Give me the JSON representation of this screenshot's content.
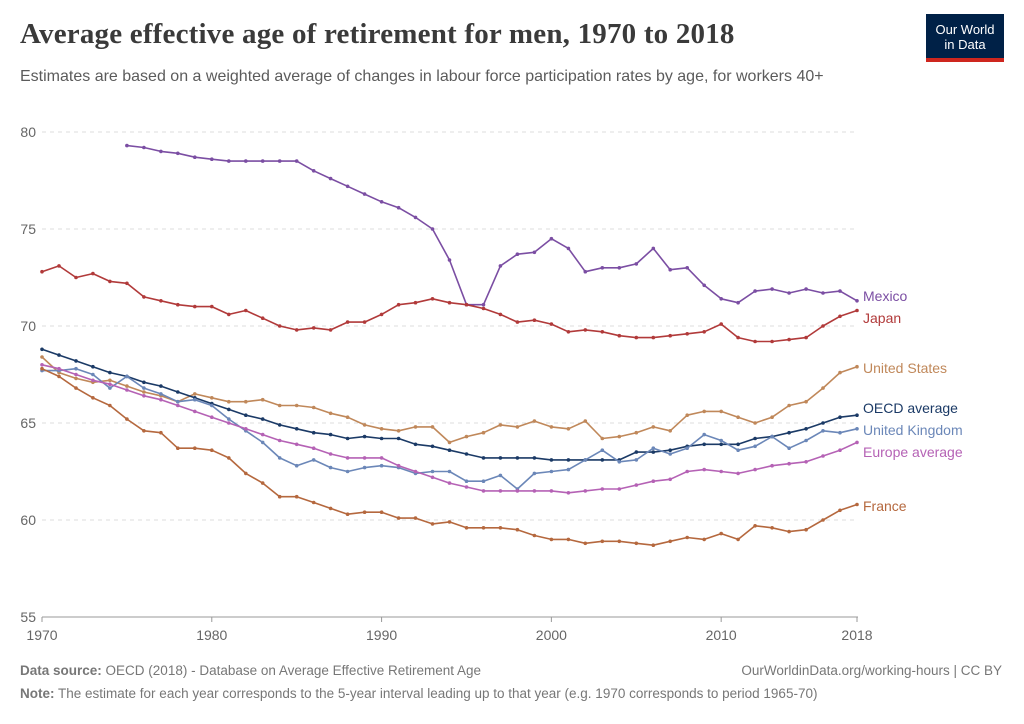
{
  "header": {
    "title": "Average effective age of retirement for men, 1970 to 2018",
    "subtitle": "Estimates are based on a weighted average of changes in labour force participation rates by age, for workers 40+",
    "logo_line1": "Our World",
    "logo_line2": "in Data"
  },
  "footer": {
    "source_label": "Data source:",
    "source_text": "OECD (2018) - Database on Average Effective Retirement Age",
    "url": "OurWorldinData.org/working-hours | CC BY",
    "note_label": "Note:",
    "note_text": "The estimate for each year corresponds to the 5-year interval leading up to that year (e.g. 1970 corresponds to period 1965-70)"
  },
  "chart_data": {
    "type": "line",
    "title": "Average effective age of retirement for men, 1970 to 2018",
    "xlim": [
      1970,
      2018
    ],
    "ylim": [
      55,
      80
    ],
    "x_ticks": [
      "1970",
      "1980",
      "1990",
      "2000",
      "2010",
      "2018"
    ],
    "y_ticks": [
      "55",
      "60",
      "65",
      "70",
      "75",
      "80"
    ],
    "grid": "horizontal dashed",
    "legend": "labels at line ends (right)",
    "series": [
      {
        "name": "Mexico",
        "color": "#7b4ea3",
        "x": [
          1975,
          1976,
          1977,
          1978,
          1979,
          1980,
          1981,
          1982,
          1983,
          1984,
          1985,
          1986,
          1987,
          1988,
          1989,
          1990,
          1991,
          1992,
          1993,
          1994,
          1995,
          1996,
          1997,
          1998,
          1999,
          2000,
          2001,
          2002,
          2003,
          2004,
          2005,
          2006,
          2007,
          2008,
          2009,
          2010,
          2011,
          2012,
          2013,
          2014,
          2015,
          2016,
          2017,
          2018
        ],
        "y": [
          79.3,
          79.2,
          79.0,
          78.9,
          78.7,
          78.6,
          78.5,
          78.5,
          78.5,
          78.5,
          78.5,
          78.0,
          77.6,
          77.2,
          76.8,
          76.4,
          76.1,
          75.6,
          75.0,
          73.4,
          71.1,
          71.1,
          73.1,
          73.7,
          73.8,
          74.5,
          74.0,
          72.8,
          73.0,
          73.0,
          73.2,
          74.0,
          72.9,
          73.0,
          72.1,
          71.4,
          71.2,
          71.8,
          71.9,
          71.7,
          71.9,
          71.7,
          71.8,
          71.3
        ]
      },
      {
        "name": "Japan",
        "color": "#b13a3a",
        "x": [
          1970,
          1971,
          1972,
          1973,
          1974,
          1975,
          1976,
          1977,
          1978,
          1979,
          1980,
          1981,
          1982,
          1983,
          1984,
          1985,
          1986,
          1987,
          1988,
          1989,
          1990,
          1991,
          1992,
          1993,
          1994,
          1995,
          1996,
          1997,
          1998,
          1999,
          2000,
          2001,
          2002,
          2003,
          2004,
          2005,
          2006,
          2007,
          2008,
          2009,
          2010,
          2011,
          2012,
          2013,
          2014,
          2015,
          2016,
          2017,
          2018
        ],
        "y": [
          72.8,
          73.1,
          72.5,
          72.7,
          72.3,
          72.2,
          71.5,
          71.3,
          71.1,
          71.0,
          71.0,
          70.6,
          70.8,
          70.4,
          70.0,
          69.8,
          69.9,
          69.8,
          70.2,
          70.2,
          70.6,
          71.1,
          71.2,
          71.4,
          71.2,
          71.1,
          70.9,
          70.6,
          70.2,
          70.3,
          70.1,
          69.7,
          69.8,
          69.7,
          69.5,
          69.4,
          69.4,
          69.5,
          69.6,
          69.7,
          70.1,
          69.4,
          69.2,
          69.2,
          69.3,
          69.4,
          70.0,
          70.5,
          70.8
        ]
      },
      {
        "name": "United States",
        "color": "#c0885a",
        "x": [
          1970,
          1971,
          1972,
          1973,
          1974,
          1975,
          1976,
          1977,
          1978,
          1979,
          1980,
          1981,
          1982,
          1983,
          1984,
          1985,
          1986,
          1987,
          1988,
          1989,
          1990,
          1991,
          1992,
          1993,
          1994,
          1995,
          1996,
          1997,
          1998,
          1999,
          2000,
          2001,
          2002,
          2003,
          2004,
          2005,
          2006,
          2007,
          2008,
          2009,
          2010,
          2011,
          2012,
          2013,
          2014,
          2015,
          2016,
          2017,
          2018
        ],
        "y": [
          68.4,
          67.6,
          67.3,
          67.1,
          67.2,
          66.9,
          66.6,
          66.4,
          66.1,
          66.5,
          66.3,
          66.1,
          66.1,
          66.2,
          65.9,
          65.9,
          65.8,
          65.5,
          65.3,
          64.9,
          64.7,
          64.6,
          64.8,
          64.8,
          64.0,
          64.3,
          64.5,
          64.9,
          64.8,
          65.1,
          64.8,
          64.7,
          65.1,
          64.2,
          64.3,
          64.5,
          64.8,
          64.6,
          65.4,
          65.6,
          65.6,
          65.3,
          65.0,
          65.3,
          65.9,
          66.1,
          66.8,
          67.6,
          67.9
        ]
      },
      {
        "name": "OECD average",
        "color": "#1b3a66",
        "x": [
          1970,
          1971,
          1972,
          1973,
          1974,
          1975,
          1976,
          1977,
          1978,
          1979,
          1980,
          1981,
          1982,
          1983,
          1984,
          1985,
          1986,
          1987,
          1988,
          1989,
          1990,
          1991,
          1992,
          1993,
          1994,
          1995,
          1996,
          1997,
          1998,
          1999,
          2000,
          2001,
          2002,
          2003,
          2004,
          2005,
          2006,
          2007,
          2008,
          2009,
          2010,
          2011,
          2012,
          2013,
          2014,
          2015,
          2016,
          2017,
          2018
        ],
        "y": [
          68.8,
          68.5,
          68.2,
          67.9,
          67.6,
          67.4,
          67.1,
          66.9,
          66.6,
          66.3,
          66.0,
          65.7,
          65.4,
          65.2,
          64.9,
          64.7,
          64.5,
          64.4,
          64.2,
          64.3,
          64.2,
          64.2,
          63.9,
          63.8,
          63.6,
          63.4,
          63.2,
          63.2,
          63.2,
          63.2,
          63.1,
          63.1,
          63.1,
          63.1,
          63.1,
          63.5,
          63.5,
          63.6,
          63.8,
          63.9,
          63.9,
          63.9,
          64.2,
          64.3,
          64.5,
          64.7,
          65.0,
          65.3,
          65.4
        ]
      },
      {
        "name": "United Kingdom",
        "color": "#6b87b8",
        "x": [
          1970,
          1971,
          1972,
          1973,
          1974,
          1975,
          1976,
          1977,
          1978,
          1979,
          1980,
          1981,
          1982,
          1983,
          1984,
          1985,
          1986,
          1987,
          1988,
          1989,
          1990,
          1991,
          1992,
          1993,
          1994,
          1995,
          1996,
          1997,
          1998,
          1999,
          2000,
          2001,
          2002,
          2003,
          2004,
          2005,
          2006,
          2007,
          2008,
          2009,
          2010,
          2011,
          2012,
          2013,
          2014,
          2015,
          2016,
          2017,
          2018
        ],
        "y": [
          67.7,
          67.7,
          67.8,
          67.5,
          66.8,
          67.4,
          66.8,
          66.5,
          66.1,
          66.2,
          65.9,
          65.2,
          64.6,
          64.0,
          63.2,
          62.8,
          63.1,
          62.7,
          62.5,
          62.7,
          62.8,
          62.7,
          62.4,
          62.5,
          62.5,
          62.0,
          62.0,
          62.3,
          61.6,
          62.4,
          62.5,
          62.6,
          63.1,
          63.6,
          63.0,
          63.1,
          63.7,
          63.4,
          63.7,
          64.4,
          64.1,
          63.6,
          63.8,
          64.3,
          63.7,
          64.1,
          64.6,
          64.5,
          64.7
        ]
      },
      {
        "name": "Europe average",
        "color": "#b562b5",
        "x": [
          1970,
          1971,
          1972,
          1973,
          1974,
          1975,
          1976,
          1977,
          1978,
          1979,
          1980,
          1981,
          1982,
          1983,
          1984,
          1985,
          1986,
          1987,
          1988,
          1989,
          1990,
          1991,
          1992,
          1993,
          1994,
          1995,
          1996,
          1997,
          1998,
          1999,
          2000,
          2001,
          2002,
          2003,
          2004,
          2005,
          2006,
          2007,
          2008,
          2009,
          2010,
          2011,
          2012,
          2013,
          2014,
          2015,
          2016,
          2017,
          2018
        ],
        "y": [
          68.0,
          67.8,
          67.5,
          67.2,
          67.0,
          66.7,
          66.4,
          66.2,
          65.9,
          65.6,
          65.3,
          65.0,
          64.7,
          64.4,
          64.1,
          63.9,
          63.7,
          63.4,
          63.2,
          63.2,
          63.2,
          62.8,
          62.5,
          62.2,
          61.9,
          61.7,
          61.5,
          61.5,
          61.5,
          61.5,
          61.5,
          61.4,
          61.5,
          61.6,
          61.6,
          61.8,
          62.0,
          62.1,
          62.5,
          62.6,
          62.5,
          62.4,
          62.6,
          62.8,
          62.9,
          63.0,
          63.3,
          63.6,
          64.0
        ]
      },
      {
        "name": "France",
        "color": "#b5683e",
        "x": [
          1970,
          1971,
          1972,
          1973,
          1974,
          1975,
          1976,
          1977,
          1978,
          1979,
          1980,
          1981,
          1982,
          1983,
          1984,
          1985,
          1986,
          1987,
          1988,
          1989,
          1990,
          1991,
          1992,
          1993,
          1994,
          1995,
          1996,
          1997,
          1998,
          1999,
          2000,
          2001,
          2002,
          2003,
          2004,
          2005,
          2006,
          2007,
          2008,
          2009,
          2010,
          2011,
          2012,
          2013,
          2014,
          2015,
          2016,
          2017,
          2018
        ],
        "y": [
          67.8,
          67.4,
          66.8,
          66.3,
          65.9,
          65.2,
          64.6,
          64.5,
          63.7,
          63.7,
          63.6,
          63.2,
          62.4,
          61.9,
          61.2,
          61.2,
          60.9,
          60.6,
          60.3,
          60.4,
          60.4,
          60.1,
          60.1,
          59.8,
          59.9,
          59.6,
          59.6,
          59.6,
          59.5,
          59.2,
          59.0,
          59.0,
          58.8,
          58.9,
          58.9,
          58.8,
          58.7,
          58.9,
          59.1,
          59.0,
          59.3,
          59.0,
          59.7,
          59.6,
          59.4,
          59.5,
          60.0,
          60.5,
          60.8
        ]
      }
    ]
  }
}
